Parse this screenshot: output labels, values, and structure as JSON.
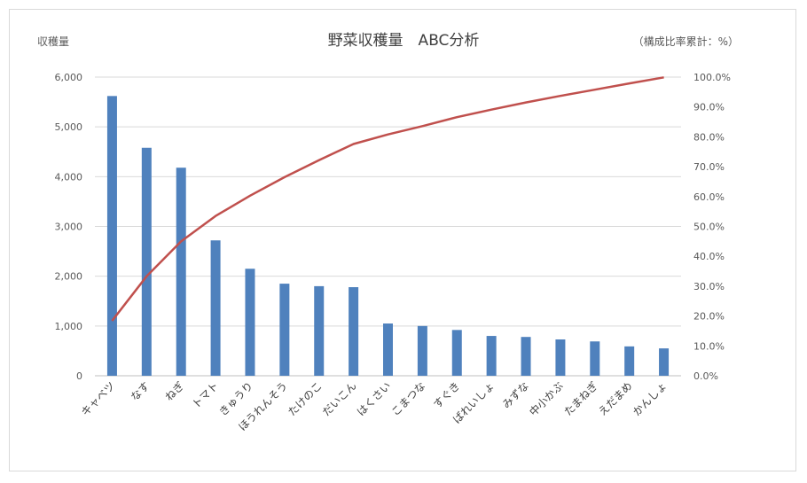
{
  "chart_data": {
    "type": "bar",
    "title": "野菜収穫量　ABC分析",
    "ylabel": "収穫量",
    "y2label": "（構成比率累計：%）",
    "ylim": [
      0,
      6000
    ],
    "y2lim": [
      0,
      100
    ],
    "yticks": [
      "0",
      "1,000",
      "2,000",
      "3,000",
      "4,000",
      "5,000",
      "6,000"
    ],
    "y2ticks": [
      "0.0%",
      "10.0%",
      "20.0%",
      "30.0%",
      "40.0%",
      "50.0%",
      "60.0%",
      "70.0%",
      "80.0%",
      "90.0%",
      "100.0%"
    ],
    "categories": [
      "キャベツ",
      "なす",
      "ねぎ",
      "トマト",
      "きゅうり",
      "ほうれんそう",
      "たけのこ",
      "だいこん",
      "はくさい",
      "こまつな",
      "すぐき",
      "ばれいしょ",
      "みずな",
      "中小かぶ",
      "たまねぎ",
      "えだまめ",
      "かんしょ"
    ],
    "series": [
      {
        "type": "bar",
        "color": "#4f81bd",
        "values": [
          5620,
          4580,
          4180,
          2720,
          2150,
          1850,
          1800,
          1780,
          1050,
          1000,
          920,
          800,
          780,
          730,
          690,
          590,
          550
        ]
      },
      {
        "type": "line",
        "color": "#c0504d",
        "values": [
          18.4,
          33.3,
          45.0,
          53.5,
          60.3,
          66.5,
          72.2,
          77.6,
          80.8,
          83.6,
          86.6,
          89.1,
          91.5,
          93.7,
          95.8,
          97.9,
          99.9
        ]
      }
    ],
    "grid": true
  }
}
